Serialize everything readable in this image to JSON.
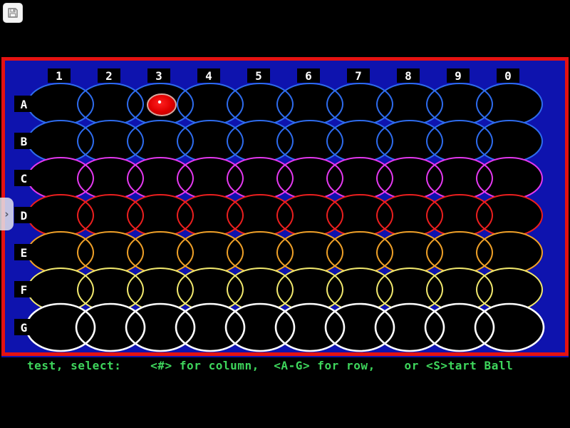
{
  "toolbar": {
    "save_icon": "floppy-disk-icon"
  },
  "side_flap": {
    "chevron": "›"
  },
  "board": {
    "frame_color": "#e41212",
    "field_color": "#0e13ae",
    "label_bg": "#000000",
    "label_fg": "#ffffff",
    "columns": [
      "1",
      "2",
      "3",
      "4",
      "5",
      "6",
      "7",
      "8",
      "9",
      "0"
    ],
    "rows": [
      {
        "label": "A",
        "color": "#2e6cee"
      },
      {
        "label": "B",
        "color": "#2e6cee"
      },
      {
        "label": "C",
        "color": "#e438f0"
      },
      {
        "label": "D",
        "color": "#ec1f1f"
      },
      {
        "label": "E",
        "color": "#f0a128"
      },
      {
        "label": "F",
        "color": "#f2e96e"
      },
      {
        "label": "G",
        "color": "#ffffff"
      }
    ],
    "ball": {
      "row": "A",
      "column": "3",
      "color_core": "#ff2020",
      "color_edge": "#b80000",
      "rim_color": "#d9a89e",
      "glint_color": "#ffffff"
    }
  },
  "status_bar": {
    "text": "test, select:    <#> for column,  <A-G> for row,    or <S>tart Ball",
    "color": "#3ed65c"
  }
}
